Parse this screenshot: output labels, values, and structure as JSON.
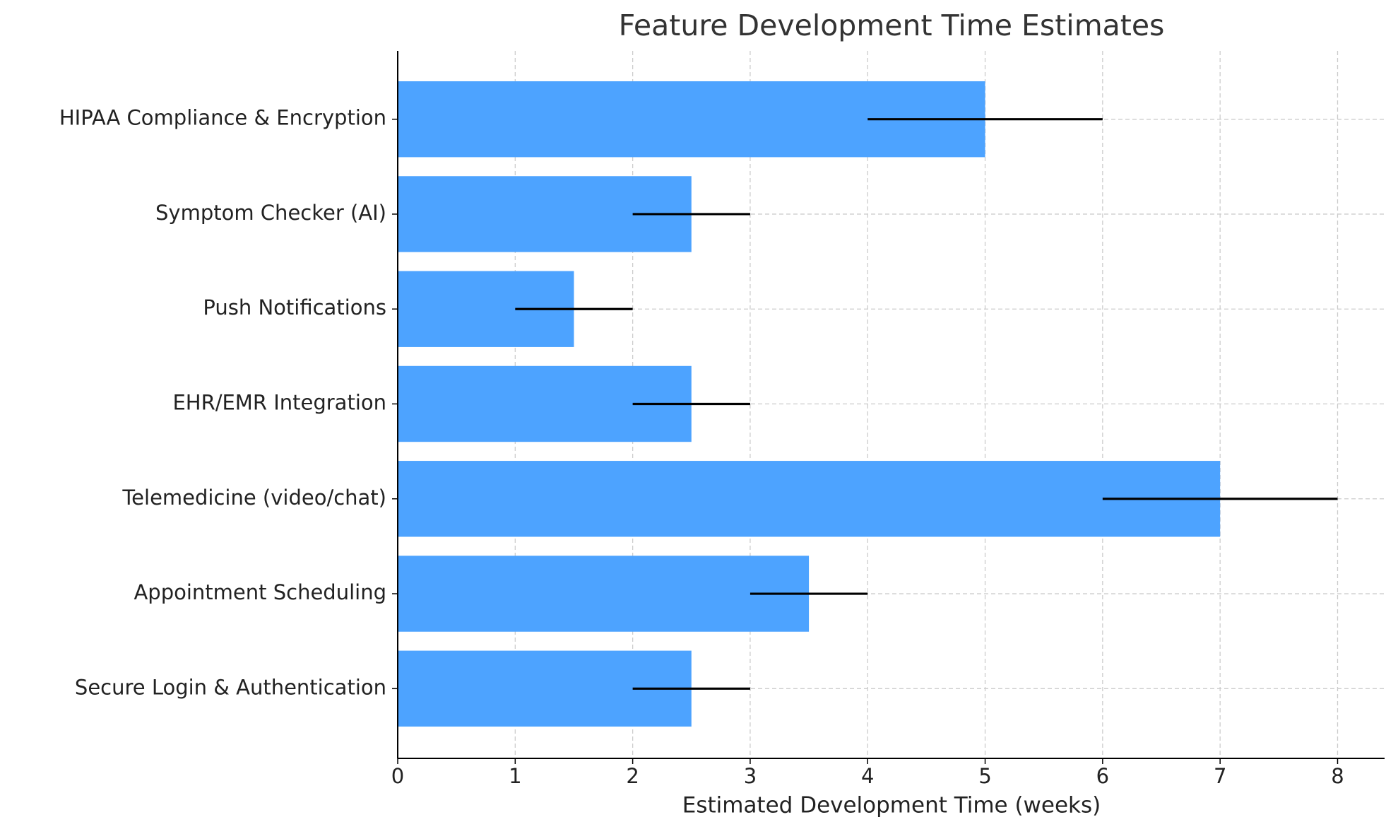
{
  "chart_data": {
    "type": "barh",
    "title": "Feature Development Time Estimates",
    "xlabel": "Estimated Development Time (weeks)",
    "categories": [
      "Secure Login & Authentication",
      "Appointment Scheduling",
      "Telemedicine (video/chat)",
      "EHR/EMR Integration",
      "Push Notifications",
      "Symptom Checker (AI)",
      "HIPAA Compliance & Encryption"
    ],
    "values": [
      2.5,
      3.5,
      7,
      2.5,
      1.5,
      2.5,
      5
    ],
    "errors": [
      0.5,
      0.5,
      1,
      0.5,
      0.5,
      0.5,
      1
    ],
    "color": "#4da3ff",
    "error_color": "#000000",
    "xlim": [
      0,
      8.4
    ],
    "xticks": [
      0,
      1,
      2,
      3,
      4,
      5,
      6,
      7,
      8
    ],
    "grid": true
  }
}
